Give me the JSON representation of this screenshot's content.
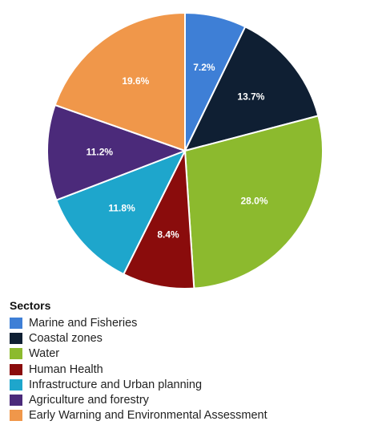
{
  "chart_data": {
    "type": "pie",
    "legend_title": "Sectors",
    "legend_position": "bottom-left",
    "slices": [
      {
        "name": "Marine and Fisheries",
        "value": 7.2,
        "label": "7.2%",
        "color": "#3e7fd6"
      },
      {
        "name": "Coastal zones",
        "value": 13.7,
        "label": "13.7%",
        "color": "#0f1f33"
      },
      {
        "name": "Water",
        "value": 28.0,
        "label": "28.0%",
        "color": "#8cba2e"
      },
      {
        "name": "Human Health",
        "value": 8.4,
        "label": "8.4%",
        "color": "#8a0c0c"
      },
      {
        "name": "Infrastructure and Urban planning",
        "value": 11.8,
        "label": "11.8%",
        "color": "#1ea6cc"
      },
      {
        "name": "Agriculture and forestry",
        "value": 11.2,
        "label": "11.2%",
        "color": "#4b2a7a"
      },
      {
        "name": "Early Warning and Environmental Assessment",
        "value": 19.6,
        "label": "19.6%",
        "color": "#f0974a"
      }
    ]
  }
}
